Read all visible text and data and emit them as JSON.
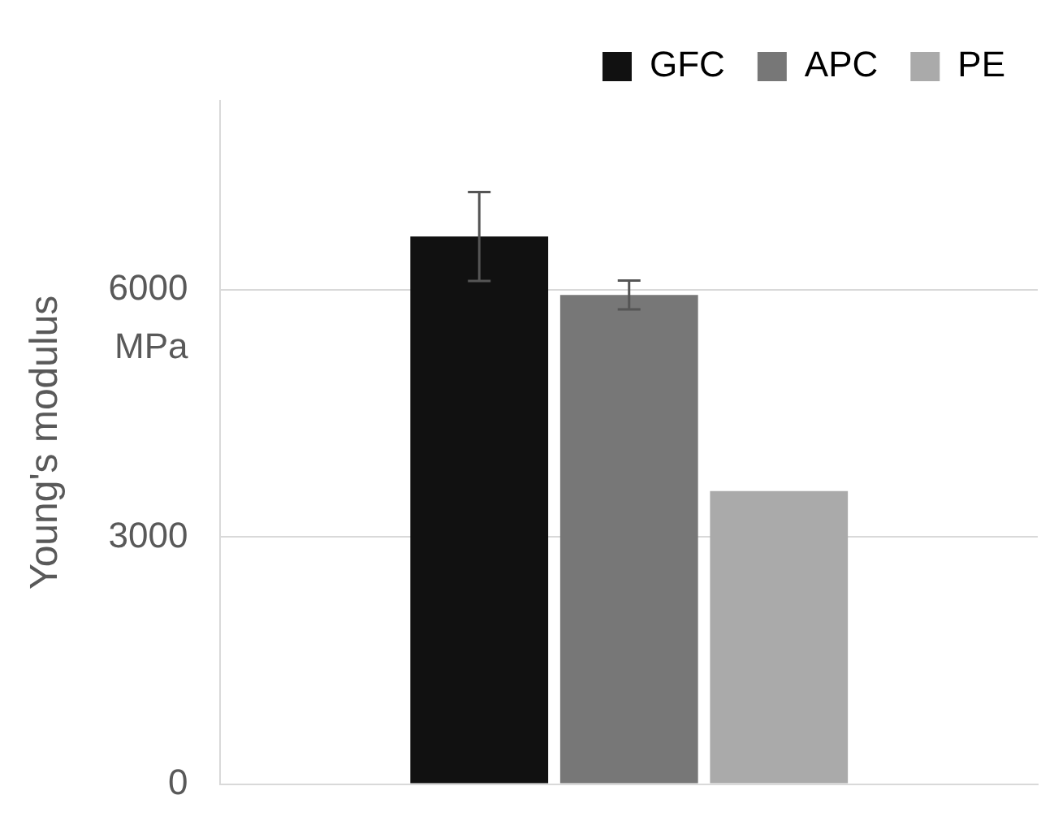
{
  "chart_data": {
    "type": "bar",
    "ylabel": "Young's modulus",
    "annotations": [
      "MPa"
    ],
    "categories": [
      null
    ],
    "series": [
      {
        "name": "GFC",
        "color": "#111111",
        "values": [
          6650
        ],
        "errors": [
          540
        ]
      },
      {
        "name": "APC",
        "color": "#777777",
        "values": [
          5940
        ],
        "errors": [
          175
        ]
      },
      {
        "name": "PE",
        "color": "#aaaaaa",
        "values": [
          3560
        ]
      }
    ],
    "ylim": [
      0,
      8300
    ],
    "yticks": [
      0,
      3000,
      6000
    ],
    "grid": "y",
    "legend": "top right"
  }
}
